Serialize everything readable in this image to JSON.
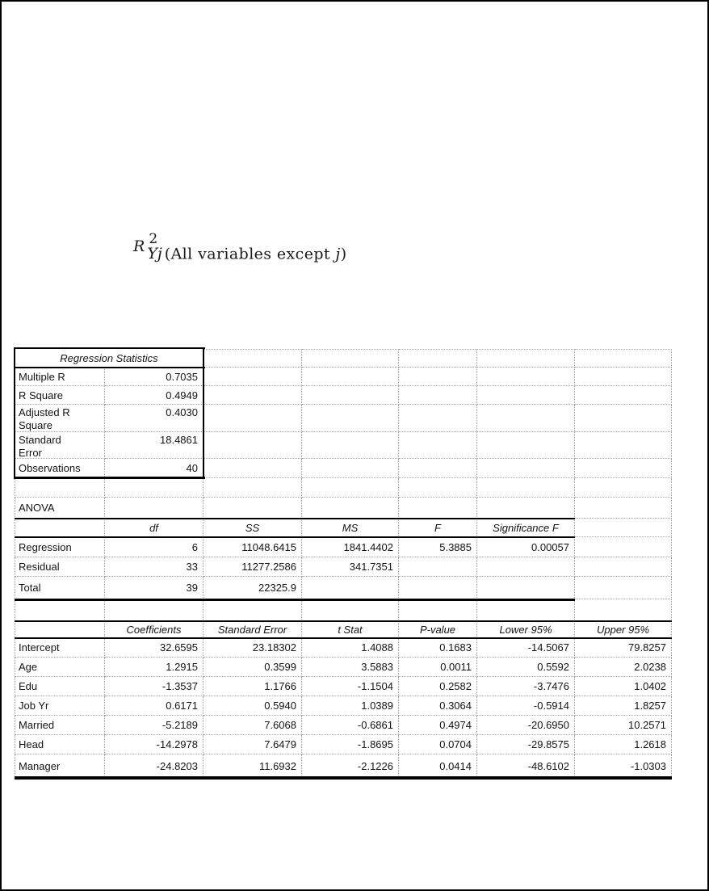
{
  "colors": {
    "rule": "#000000",
    "grid_line": "#a6a6a6",
    "text": "#141414",
    "background": "#ffffff"
  },
  "formula": {
    "base": "R",
    "superscript": "2",
    "subscript": "Yj",
    "text_open": "(All variables except ",
    "text_j": "j",
    "text_close": ")"
  },
  "regression_statistics": {
    "title": "Regression Statistics",
    "rows": [
      {
        "label": "Multiple R",
        "value": "0.7035"
      },
      {
        "label": "R Square",
        "value": "0.4949"
      },
      {
        "label": "Adjusted R Square",
        "value": "0.4030"
      },
      {
        "label": "Standard Error",
        "value": "18.4861"
      },
      {
        "label": "Observations",
        "value": "40"
      }
    ]
  },
  "anova": {
    "label": "ANOVA",
    "headers": [
      "df",
      "SS",
      "MS",
      "F",
      "Significance F"
    ],
    "rows": [
      {
        "label": "Regression",
        "df": "6",
        "ss": "11048.6415",
        "ms": "1841.4402",
        "f": "5.3885",
        "sig_f": "0.00057"
      },
      {
        "label": "Residual",
        "df": "33",
        "ss": "11277.2586",
        "ms": "341.7351",
        "f": "",
        "sig_f": ""
      },
      {
        "label": "Total",
        "df": "39",
        "ss": "22325.9",
        "ms": "",
        "f": "",
        "sig_f": ""
      }
    ]
  },
  "coefficients_table": {
    "headers": [
      "Coefficients",
      "Standard Error",
      "t Stat",
      "P-value",
      "Lower 95%",
      "Upper 95%"
    ],
    "rows": [
      {
        "label": "Intercept",
        "coef": "32.6595",
        "se": "23.18302",
        "t": "1.4088",
        "p": "0.1683",
        "lower": "-14.5067",
        "upper": "79.8257"
      },
      {
        "label": "Age",
        "coef": "1.2915",
        "se": "0.3599",
        "t": "3.5883",
        "p": "0.0011",
        "lower": "0.5592",
        "upper": "2.0238"
      },
      {
        "label": "Edu",
        "coef": "-1.3537",
        "se": "1.1766",
        "t": "-1.1504",
        "p": "0.2582",
        "lower": "-3.7476",
        "upper": "1.0402"
      },
      {
        "label": "Job Yr",
        "coef": "0.6171",
        "se": "0.5940",
        "t": "1.0389",
        "p": "0.3064",
        "lower": "-0.5914",
        "upper": "1.8257"
      },
      {
        "label": "Married",
        "coef": "-5.2189",
        "se": "7.6068",
        "t": "-0.6861",
        "p": "0.4974",
        "lower": "-20.6950",
        "upper": "10.2571"
      },
      {
        "label": "Head",
        "coef": "-14.2978",
        "se": "7.6479",
        "t": "-1.8695",
        "p": "0.0704",
        "lower": "-29.8575",
        "upper": "1.2618"
      },
      {
        "label": "Manager",
        "coef": "-24.8203",
        "se": "11.6932",
        "t": "-2.1226",
        "p": "0.0414",
        "lower": "-48.6102",
        "upper": "-1.0303"
      }
    ]
  }
}
